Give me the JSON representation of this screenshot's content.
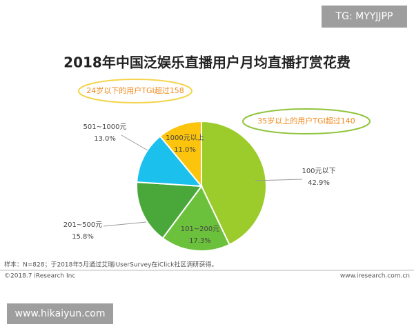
{
  "chart_data": {
    "type": "pie",
    "title": "2018年中国泛娱乐直播用户月均直播打赏花费",
    "categories": [
      "100元以下",
      "101~200元",
      "201~500元",
      "501~1000元",
      "1000元以上"
    ],
    "values": [
      42.9,
      17.3,
      15.8,
      13.0,
      11.0
    ],
    "value_labels": [
      "42.9%",
      "17.3%",
      "15.8%",
      "13.0%",
      "11.0%"
    ],
    "colors": [
      "#9ccc2c",
      "#6cc13c",
      "#4aa83a",
      "#1cc0ec",
      "#fcc40c"
    ],
    "annotations": [
      "24岁以下的用户TGI超过158",
      "35岁以上的用户TGI超过140"
    ],
    "footnote": "样本：N=828；于2018年5月通过艾瑞iUserSurvey在iClick社区调研获得。",
    "copyright": "©2018.7 iResearch Inc",
    "source_url": "www.iresearch.com.cn"
  },
  "watermarks": [
    "TG: MYYJJPP",
    "www.hikaiyun.com"
  ]
}
